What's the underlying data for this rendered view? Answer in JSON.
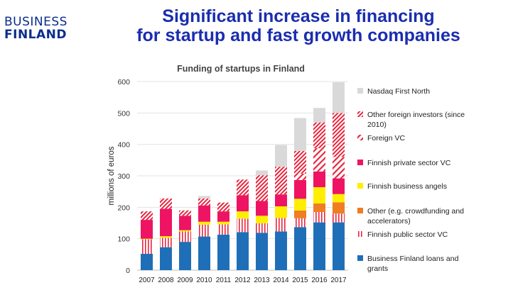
{
  "logo": {
    "line1": "BUSINESS",
    "line2": "FINLAND"
  },
  "slide": {
    "title_line1": "Significant increase in financing",
    "title_line2": "for startup and fast growth companies"
  },
  "colors": {
    "brand": "#0a2d8c",
    "title": "#1a2db0"
  },
  "chart_data": {
    "type": "bar",
    "stacked": true,
    "title": "Funding of startups in Finland",
    "xlabel": "",
    "ylabel": "millions of euros",
    "ylim": [
      0,
      600
    ],
    "yticks": [
      0,
      100,
      200,
      300,
      400,
      500,
      600
    ],
    "grid": true,
    "legend_position": "right",
    "categories": [
      "2007",
      "2008",
      "2009",
      "2010",
      "2011",
      "2012",
      "2013",
      "2014",
      "2015",
      "2016",
      "2017"
    ],
    "series": [
      {
        "name": "Business Finland loans and grants",
        "color": "#1f6fb8",
        "pattern": "solid",
        "values": [
          52,
          73,
          90,
          107,
          113,
          121,
          119,
          123,
          137,
          152,
          152
        ]
      },
      {
        "name": "Finnish public sector VC",
        "color": "#e8253e",
        "pattern": "vertical",
        "values": [
          46,
          30,
          33,
          38,
          33,
          43,
          30,
          43,
          28,
          33,
          28
        ]
      },
      {
        "name": "Other (e.g. crowdfunding and accelerators)",
        "color": "#ef7d22",
        "pattern": "solid",
        "values": [
          0,
          0,
          0,
          0,
          0,
          0,
          0,
          0,
          25,
          27,
          36
        ]
      },
      {
        "name": "Finnish business angels",
        "color": "#ffee00",
        "pattern": "solid",
        "values": [
          2,
          5,
          4,
          9,
          8,
          23,
          24,
          37,
          37,
          52,
          26
        ]
      },
      {
        "name": "Finnish private sector VC",
        "color": "#ee1463",
        "pattern": "solid",
        "values": [
          60,
          87,
          46,
          52,
          33,
          51,
          47,
          38,
          60,
          50,
          50
        ]
      },
      {
        "name": "Foreign VC",
        "color": "#e8253e",
        "pattern": "diag-sparse",
        "values": [
          0,
          0,
          0,
          0,
          0,
          0,
          0,
          0,
          20,
          74,
          68
        ]
      },
      {
        "name": "Other foreign investors (since 2010)",
        "color": "#e8253e",
        "pattern": "diag-dense",
        "values": [
          27,
          33,
          17,
          22,
          28,
          50,
          82,
          88,
          72,
          82,
          140
        ]
      },
      {
        "name": "Nasdaq First North",
        "color": "#d9d9d9",
        "pattern": "solid",
        "values": [
          0,
          0,
          0,
          8,
          0,
          0,
          15,
          69,
          105,
          46,
          98
        ]
      }
    ]
  }
}
